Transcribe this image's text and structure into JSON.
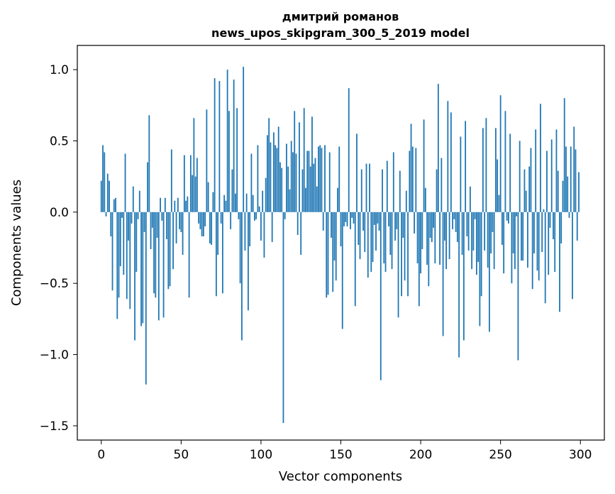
{
  "chart_data": {
    "type": "bar",
    "title_line1": "дмитрий романов",
    "title_line2": "news_upos_skipgram_300_5_2019 model",
    "xlabel": "Vector components",
    "ylabel": "Components values",
    "xlim": [
      -15,
      315
    ],
    "ylim": [
      -1.6,
      1.17
    ],
    "x_ticks": [
      0,
      50,
      100,
      150,
      200,
      250,
      300
    ],
    "x_tick_labels": [
      "0",
      "50",
      "100",
      "150",
      "200",
      "250",
      "300"
    ],
    "y_ticks": [
      1.0,
      0.5,
      0.0,
      -0.5,
      -1.0,
      -1.5
    ],
    "y_tick_labels": [
      "1.0",
      "0.5",
      "0.0",
      "−0.5",
      "−1.0",
      "−1.5"
    ],
    "bar_color": "#1f77b4",
    "values": [
      0.22,
      0.47,
      0.42,
      -0.03,
      0.27,
      0.22,
      -0.17,
      -0.55,
      0.09,
      0.1,
      -0.75,
      -0.6,
      -0.38,
      -0.04,
      -0.44,
      0.41,
      -0.61,
      -0.2,
      -0.68,
      -0.08,
      0.18,
      -0.9,
      -0.42,
      -0.05,
      0.15,
      -0.8,
      -0.78,
      -0.14,
      -1.21,
      0.35,
      0.68,
      -0.26,
      -0.11,
      -0.57,
      -0.6,
      -0.18,
      -0.76,
      0.1,
      -0.06,
      -0.74,
      0.1,
      -0.19,
      -0.54,
      -0.52,
      0.44,
      -0.4,
      0.08,
      -0.22,
      0.1,
      -0.12,
      -0.14,
      -0.3,
      0.4,
      0.08,
      0.11,
      -0.6,
      0.4,
      0.26,
      0.66,
      0.25,
      0.38,
      -0.08,
      -0.12,
      -0.17,
      -0.17,
      -0.1,
      0.72,
      0.21,
      -0.22,
      -0.23,
      0.14,
      0.94,
      -0.59,
      -0.3,
      0.92,
      -0.08,
      -0.57,
      0.12,
      0.08,
      1.0,
      0.71,
      -0.12,
      0.3,
      0.93,
      0.13,
      0.73,
      -0.05,
      -0.5,
      -0.9,
      1.02,
      -0.27,
      0.13,
      -0.69,
      -0.24,
      0.41,
      0.12,
      -0.06,
      -0.05,
      0.47,
      0.04,
      -0.2,
      0.15,
      -0.32,
      0.24,
      0.54,
      0.66,
      0.49,
      -0.21,
      0.56,
      0.47,
      0.45,
      0.6,
      0.35,
      0.31,
      -1.48,
      -0.05,
      0.48,
      0.32,
      0.16,
      0.5,
      0.42,
      0.71,
      0.41,
      -0.16,
      0.63,
      -0.3,
      0.3,
      0.73,
      0.17,
      0.43,
      0.43,
      0.32,
      0.67,
      0.34,
      0.38,
      0.18,
      0.46,
      0.47,
      0.45,
      -0.13,
      0.47,
      -0.6,
      -0.58,
      0.42,
      -0.18,
      -0.56,
      -0.34,
      -0.48,
      0.17,
      0.46,
      -0.24,
      -0.82,
      -0.1,
      -0.07,
      -0.1,
      0.87,
      -0.12,
      -0.04,
      -0.08,
      -0.66,
      0.55,
      -0.23,
      -0.33,
      0.3,
      -0.13,
      -0.28,
      0.34,
      -0.46,
      0.34,
      -0.42,
      -0.35,
      -0.09,
      -0.27,
      -0.08,
      -0.13,
      -1.18,
      0.3,
      -0.36,
      -0.42,
      0.36,
      -0.1,
      -0.3,
      -0.4,
      0.42,
      -0.2,
      -0.12,
      -0.74,
      0.29,
      -0.59,
      -0.18,
      -0.48,
      0.15,
      -0.59,
      0.43,
      0.62,
      0.46,
      -0.15,
      0.45,
      -0.36,
      -0.66,
      -0.43,
      -0.26,
      0.65,
      0.17,
      -0.37,
      -0.52,
      -0.18,
      -0.21,
      -0.11,
      -0.36,
      0.3,
      0.9,
      -0.37,
      0.38,
      -0.87,
      -0.2,
      -0.4,
      0.78,
      -0.33,
      0.7,
      -0.12,
      -0.05,
      -0.14,
      -0.21,
      -1.02,
      0.53,
      -0.3,
      -0.9,
      0.64,
      -0.17,
      -0.27,
      0.18,
      -0.4,
      -0.27,
      -0.05,
      -0.44,
      -0.35,
      -0.8,
      -0.59,
      0.59,
      -0.27,
      0.66,
      -0.39,
      -0.84,
      -0.29,
      -0.14,
      -0.4,
      0.59,
      0.37,
      0.12,
      0.82,
      -0.23,
      -0.43,
      0.71,
      -0.06,
      -0.08,
      0.55,
      -0.5,
      -0.29,
      -0.4,
      -0.03,
      -1.04,
      0.5,
      -0.34,
      -0.34,
      0.3,
      0.15,
      -0.39,
      0.32,
      0.45,
      -0.54,
      -0.29,
      0.58,
      -0.41,
      -0.48,
      0.76,
      -0.28,
      0.02,
      -0.64,
      0.43,
      -0.44,
      -0.11,
      0.51,
      -0.19,
      -0.42,
      0.58,
      0.29,
      -0.7,
      -0.22,
      0.22,
      0.8,
      0.46,
      0.25,
      -0.04,
      0.46,
      -0.61,
      0.6,
      0.44,
      -0.2,
      0.28
    ]
  }
}
